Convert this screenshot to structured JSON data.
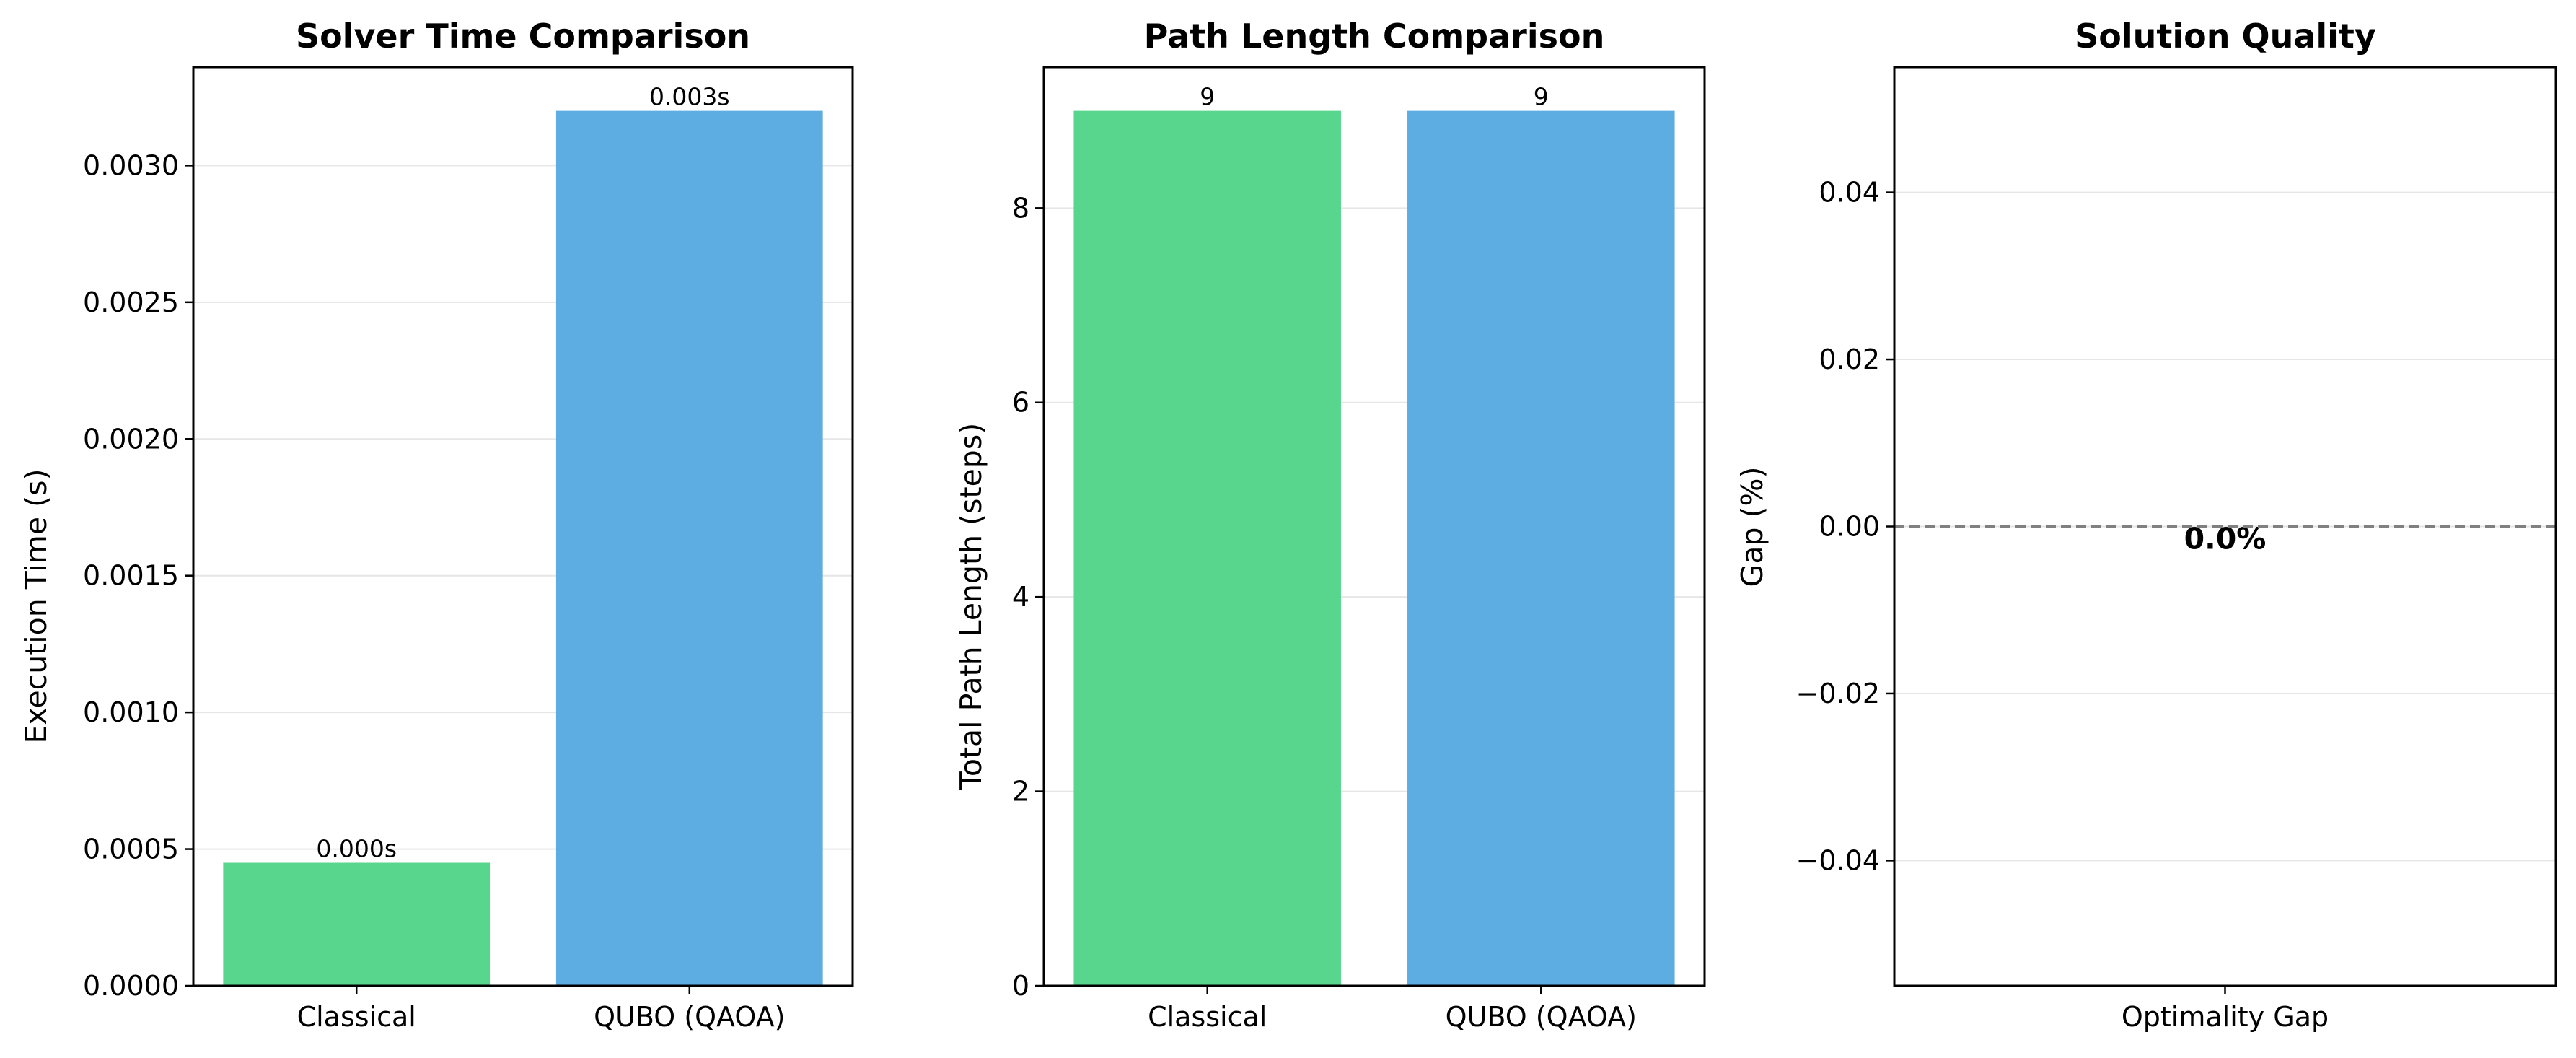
{
  "figure": {
    "background": "#ffffff",
    "grid_color": "#e6e6e6",
    "axis_color": "#000000"
  },
  "chart_data": [
    {
      "type": "bar",
      "title": "Solver Time Comparison",
      "xlabel": "",
      "ylabel": "Execution Time (s)",
      "categories": [
        "Classical",
        "QUBO (QAOA)"
      ],
      "values": [
        0.00045,
        0.0032
      ],
      "data_labels": [
        "0.000s",
        "0.003s"
      ],
      "colors": [
        "#58d68d",
        "#5dade2"
      ],
      "ylim": [
        0,
        0.00336
      ],
      "yticks": [
        0,
        0.0005,
        0.001,
        0.0015,
        0.002,
        0.0025,
        0.003
      ],
      "ytick_labels": [
        "0.0000",
        "0.0005",
        "0.0010",
        "0.0015",
        "0.0020",
        "0.0025",
        "0.0030"
      ],
      "grid": true
    },
    {
      "type": "bar",
      "title": "Path Length Comparison",
      "xlabel": "",
      "ylabel": "Total Path Length (steps)",
      "categories": [
        "Classical",
        "QUBO (QAOA)"
      ],
      "values": [
        9,
        9
      ],
      "data_labels": [
        "9",
        "9"
      ],
      "colors": [
        "#58d68d",
        "#5dade2"
      ],
      "ylim": [
        0,
        9.45
      ],
      "yticks": [
        0,
        2,
        4,
        6,
        8
      ],
      "ytick_labels": [
        "0",
        "2",
        "4",
        "6",
        "8"
      ],
      "grid": true
    },
    {
      "type": "bar",
      "title": "Solution Quality",
      "xlabel": "",
      "ylabel": "Gap (%)",
      "categories": [
        "Optimality Gap"
      ],
      "values": [
        0.0
      ],
      "data_labels": [
        "0.0%"
      ],
      "colors": [
        "#e74c3c"
      ],
      "ylim": [
        -0.055,
        0.055
      ],
      "yticks": [
        -0.04,
        -0.02,
        0,
        0.02,
        0.04
      ],
      "ytick_labels": [
        "−0.04",
        "−0.02",
        "0.00",
        "0.02",
        "0.04"
      ],
      "reference_line": {
        "y": 0,
        "style": "dashed",
        "color": "#808080"
      },
      "grid": true
    }
  ]
}
